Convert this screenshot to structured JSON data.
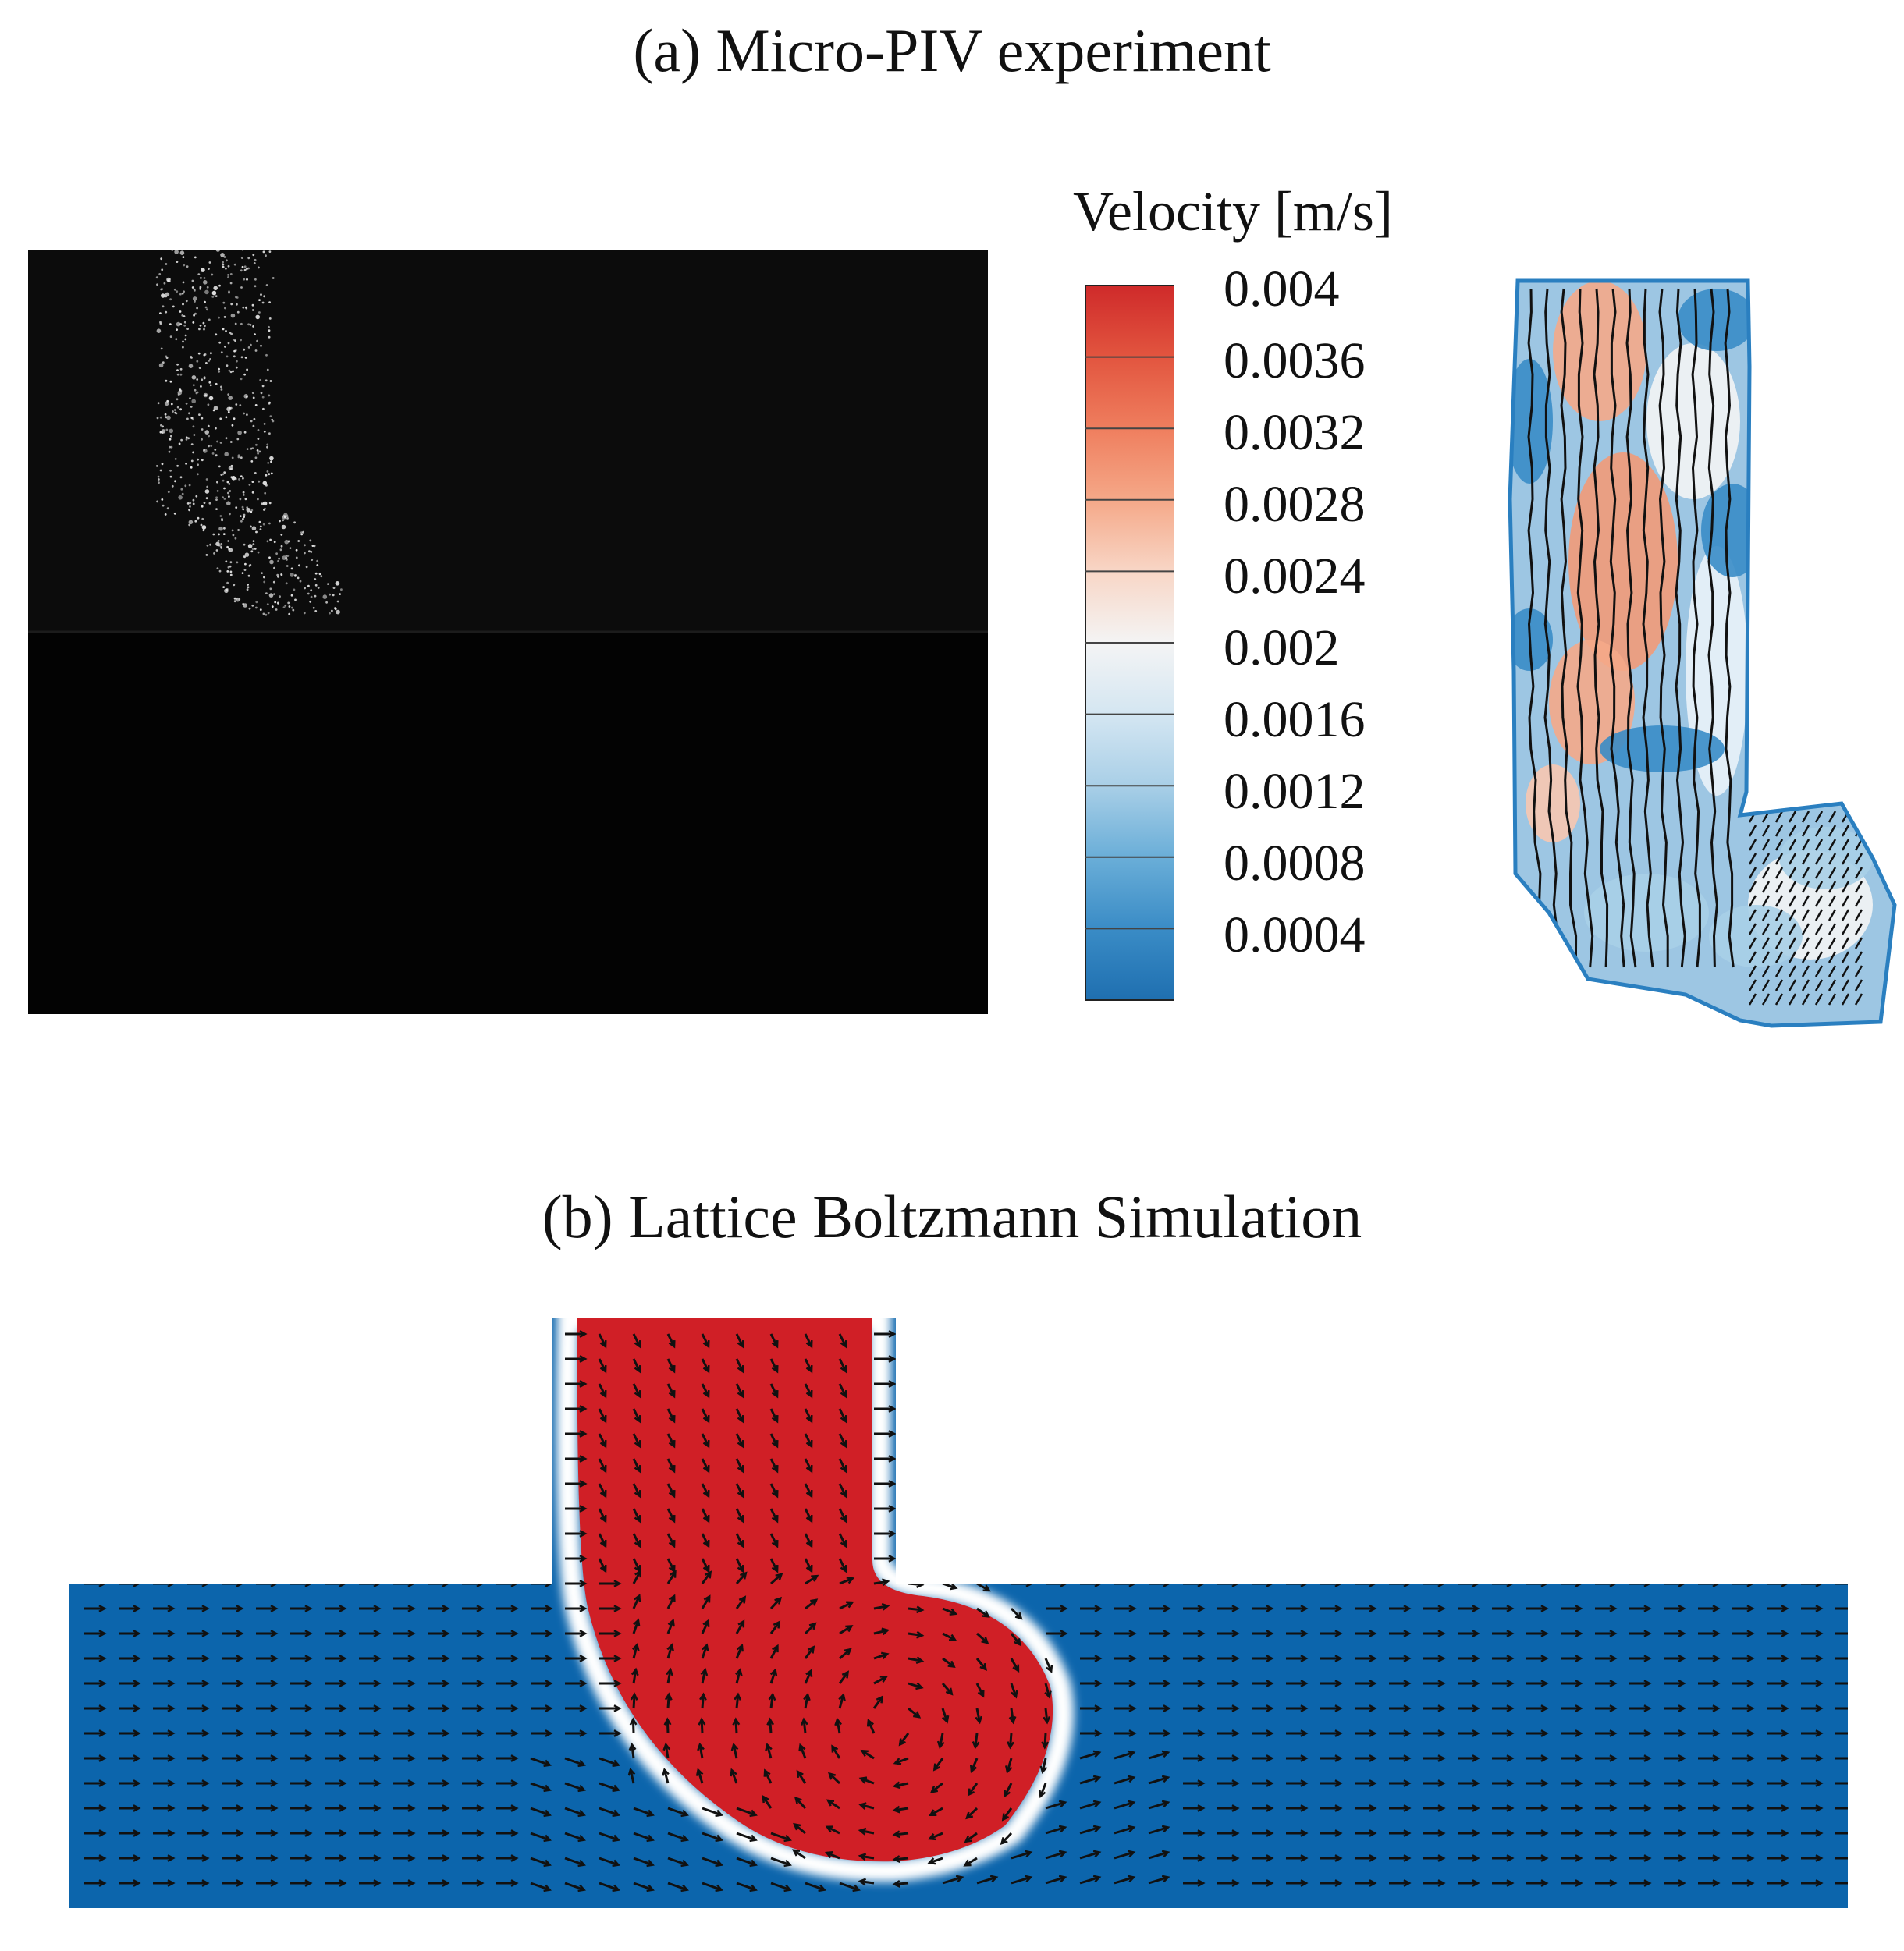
{
  "panel_a": {
    "title": "(a) Micro-PIV experiment",
    "colorbar": {
      "title": "Velocity [m/s]",
      "labels": [
        "0.004",
        "0.0036",
        "0.0032",
        "0.0028",
        "0.0024",
        "0.002",
        "0.0016",
        "0.0012",
        "0.0008",
        "0.0004"
      ],
      "colors": [
        "#cf2a2a",
        "#e2553f",
        "#ef7e5e",
        "#f5a888",
        "#f8d6c6",
        "#f4f4f4",
        "#d4e6f2",
        "#a9cfe7",
        "#6aaed8",
        "#3a8cc6",
        "#1f6fb0"
      ]
    }
  },
  "panel_b": {
    "title": "(b) Lattice Boltzmann Simulation",
    "colors": {
      "dispersed_phase": "#d01f26",
      "continuous_phase": "#0c65ac",
      "interface": "#ffffff",
      "vectors": "#111111"
    }
  }
}
